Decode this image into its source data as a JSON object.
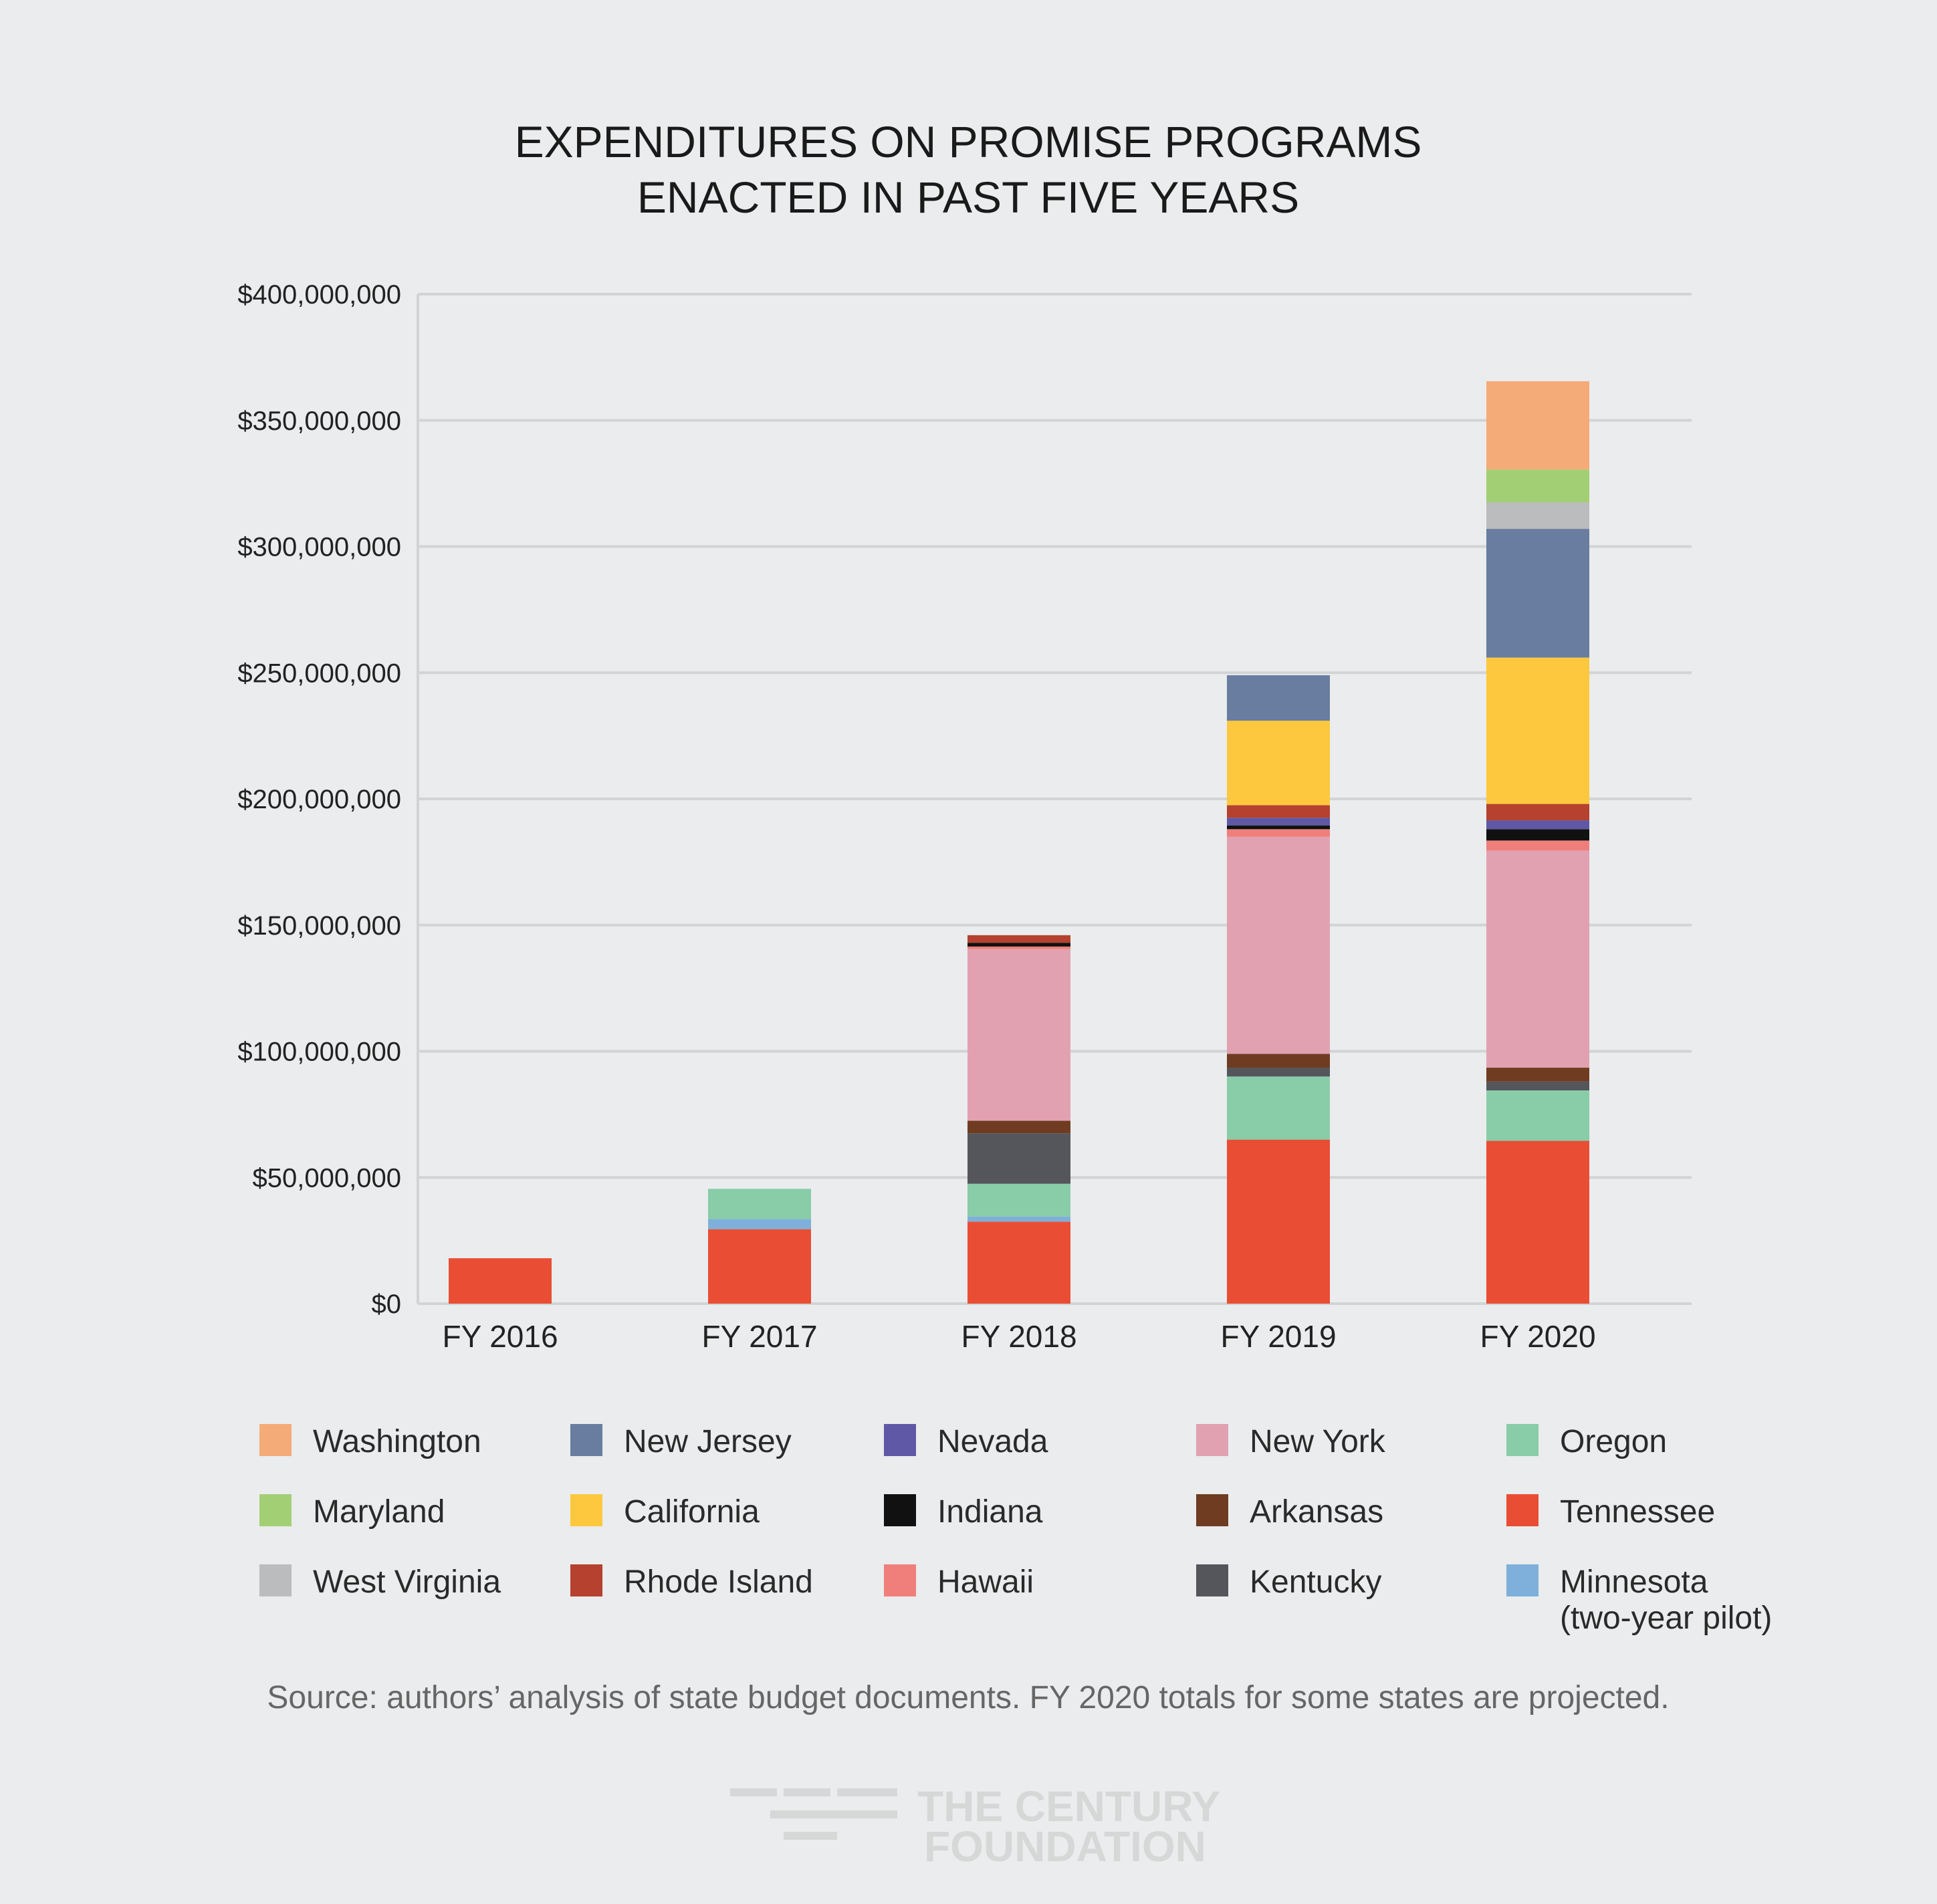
{
  "chart_data": {
    "type": "bar",
    "stacked": true,
    "title": [
      "EXPENDITURES ON PROMISE PROGRAMS",
      "ENACTED IN PAST FIVE YEARS"
    ],
    "xlabel": "",
    "ylabel": "",
    "ylim": [
      0,
      400000000
    ],
    "yticks": [
      {
        "value": 0,
        "label": "$0"
      },
      {
        "value": 50000000,
        "label": "$50,000,000"
      },
      {
        "value": 100000000,
        "label": "$100,000,000"
      },
      {
        "value": 150000000,
        "label": "$150,000,000"
      },
      {
        "value": 200000000,
        "label": "$200,000,000"
      },
      {
        "value": 250000000,
        "label": "$250,000,000"
      },
      {
        "value": 300000000,
        "label": "$300,000,000"
      },
      {
        "value": 350000000,
        "label": "$350,000,000"
      },
      {
        "value": 400000000,
        "label": "$400,000,000"
      }
    ],
    "grid": true,
    "categories": [
      "FY 2016",
      "FY 2017",
      "FY 2018",
      "FY 2019",
      "FY 2020"
    ],
    "series": [
      {
        "name": "Tennessee",
        "color": "#e94e35",
        "values": [
          18000000,
          29500000,
          32500000,
          65000000,
          64500000
        ]
      },
      {
        "name": "Minnesota (two-year pilot)",
        "color": "#7eb0db",
        "values": [
          0,
          4000000,
          2000000,
          0,
          0
        ]
      },
      {
        "name": "Oregon",
        "color": "#89cca8",
        "values": [
          0,
          12000000,
          13000000,
          25000000,
          20000000
        ]
      },
      {
        "name": "Kentucky",
        "color": "#54565c",
        "values": [
          0,
          0,
          20000000,
          3500000,
          3500000
        ]
      },
      {
        "name": "Arkansas",
        "color": "#6f3c21",
        "values": [
          0,
          0,
          5000000,
          5500000,
          5500000
        ]
      },
      {
        "name": "New York",
        "color": "#e2a1b1",
        "values": [
          0,
          0,
          68000000,
          86000000,
          86000000
        ]
      },
      {
        "name": "Hawaii",
        "color": "#f07f7c",
        "values": [
          0,
          0,
          1000000,
          3000000,
          4000000
        ]
      },
      {
        "name": "Indiana",
        "color": "#111111",
        "values": [
          0,
          0,
          1500000,
          1500000,
          4500000
        ]
      },
      {
        "name": "Nevada",
        "color": "#5e58a6",
        "values": [
          0,
          0,
          0,
          3000000,
          3500000
        ]
      },
      {
        "name": "Rhode Island",
        "color": "#b5412e",
        "values": [
          0,
          0,
          3000000,
          5000000,
          6500000
        ]
      },
      {
        "name": "California",
        "color": "#fdc83e",
        "values": [
          0,
          0,
          0,
          33500000,
          58000000
        ]
      },
      {
        "name": "New Jersey",
        "color": "#687d9f",
        "values": [
          0,
          0,
          0,
          18000000,
          51000000
        ]
      },
      {
        "name": "West Virginia",
        "color": "#bbbcbd",
        "values": [
          0,
          0,
          0,
          0,
          10500000
        ]
      },
      {
        "name": "Maryland",
        "color": "#a2cf74",
        "values": [
          0,
          0,
          0,
          0,
          13000000
        ]
      },
      {
        "name": "Washington",
        "color": "#f5ab78",
        "values": [
          0,
          0,
          0,
          0,
          35000000
        ]
      }
    ],
    "legend": {
      "placement": "bottom",
      "columns": [
        [
          "Washington",
          "Maryland",
          "West Virginia"
        ],
        [
          "New Jersey",
          "California",
          "Rhode Island"
        ],
        [
          "Nevada",
          "Indiana",
          "Hawaii"
        ],
        [
          "New York",
          "Arkansas",
          "Kentucky"
        ],
        [
          "Oregon",
          "Tennessee",
          "Minnesota (two-year pilot)"
        ]
      ],
      "labels": {
        "Minnesota (two-year pilot)": [
          "Minnesota",
          "(two-year pilot)"
        ]
      }
    }
  },
  "source_note": "Source: authors’ analysis of state budget documents. FY 2020 totals for some states are projected.",
  "logo": {
    "line1": "THE CENTURY",
    "line2": "FOUNDATION",
    "color": "#d6d7d7"
  }
}
